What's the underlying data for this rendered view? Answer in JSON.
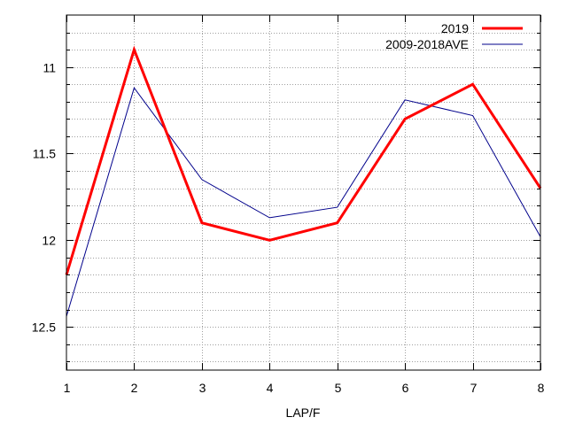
{
  "chart_data": {
    "type": "line",
    "xlabel": "LAP/F",
    "ylabel": "",
    "x": [
      1,
      2,
      3,
      4,
      5,
      6,
      7,
      8
    ],
    "xlim": [
      1,
      8
    ],
    "ylim": [
      10.7,
      12.75
    ],
    "y_inverted": true,
    "y_ticks": [
      11,
      11.5,
      12,
      12.5
    ],
    "y_tick_labels": [
      "11",
      "11.5",
      "12",
      "12.5"
    ],
    "y_minor_step": 0.1,
    "x_ticks": [
      1,
      2,
      3,
      4,
      5,
      6,
      7,
      8
    ],
    "x_tick_labels": [
      "1",
      "2",
      "3",
      "4",
      "5",
      "6",
      "7",
      "8"
    ],
    "grid": true,
    "grid_style": "dotted",
    "legend_position": "top-right",
    "series": [
      {
        "name": "2019",
        "color": "#ff0000",
        "line_weight": "thick",
        "values": [
          12.2,
          10.9,
          11.9,
          12.0,
          11.9,
          11.3,
          11.1,
          11.7
        ]
      },
      {
        "name": "2009-2018AVE",
        "color": "#00008b",
        "line_weight": "thin",
        "values": [
          12.44,
          11.12,
          11.65,
          11.87,
          11.81,
          11.19,
          11.28,
          11.98
        ]
      }
    ]
  }
}
